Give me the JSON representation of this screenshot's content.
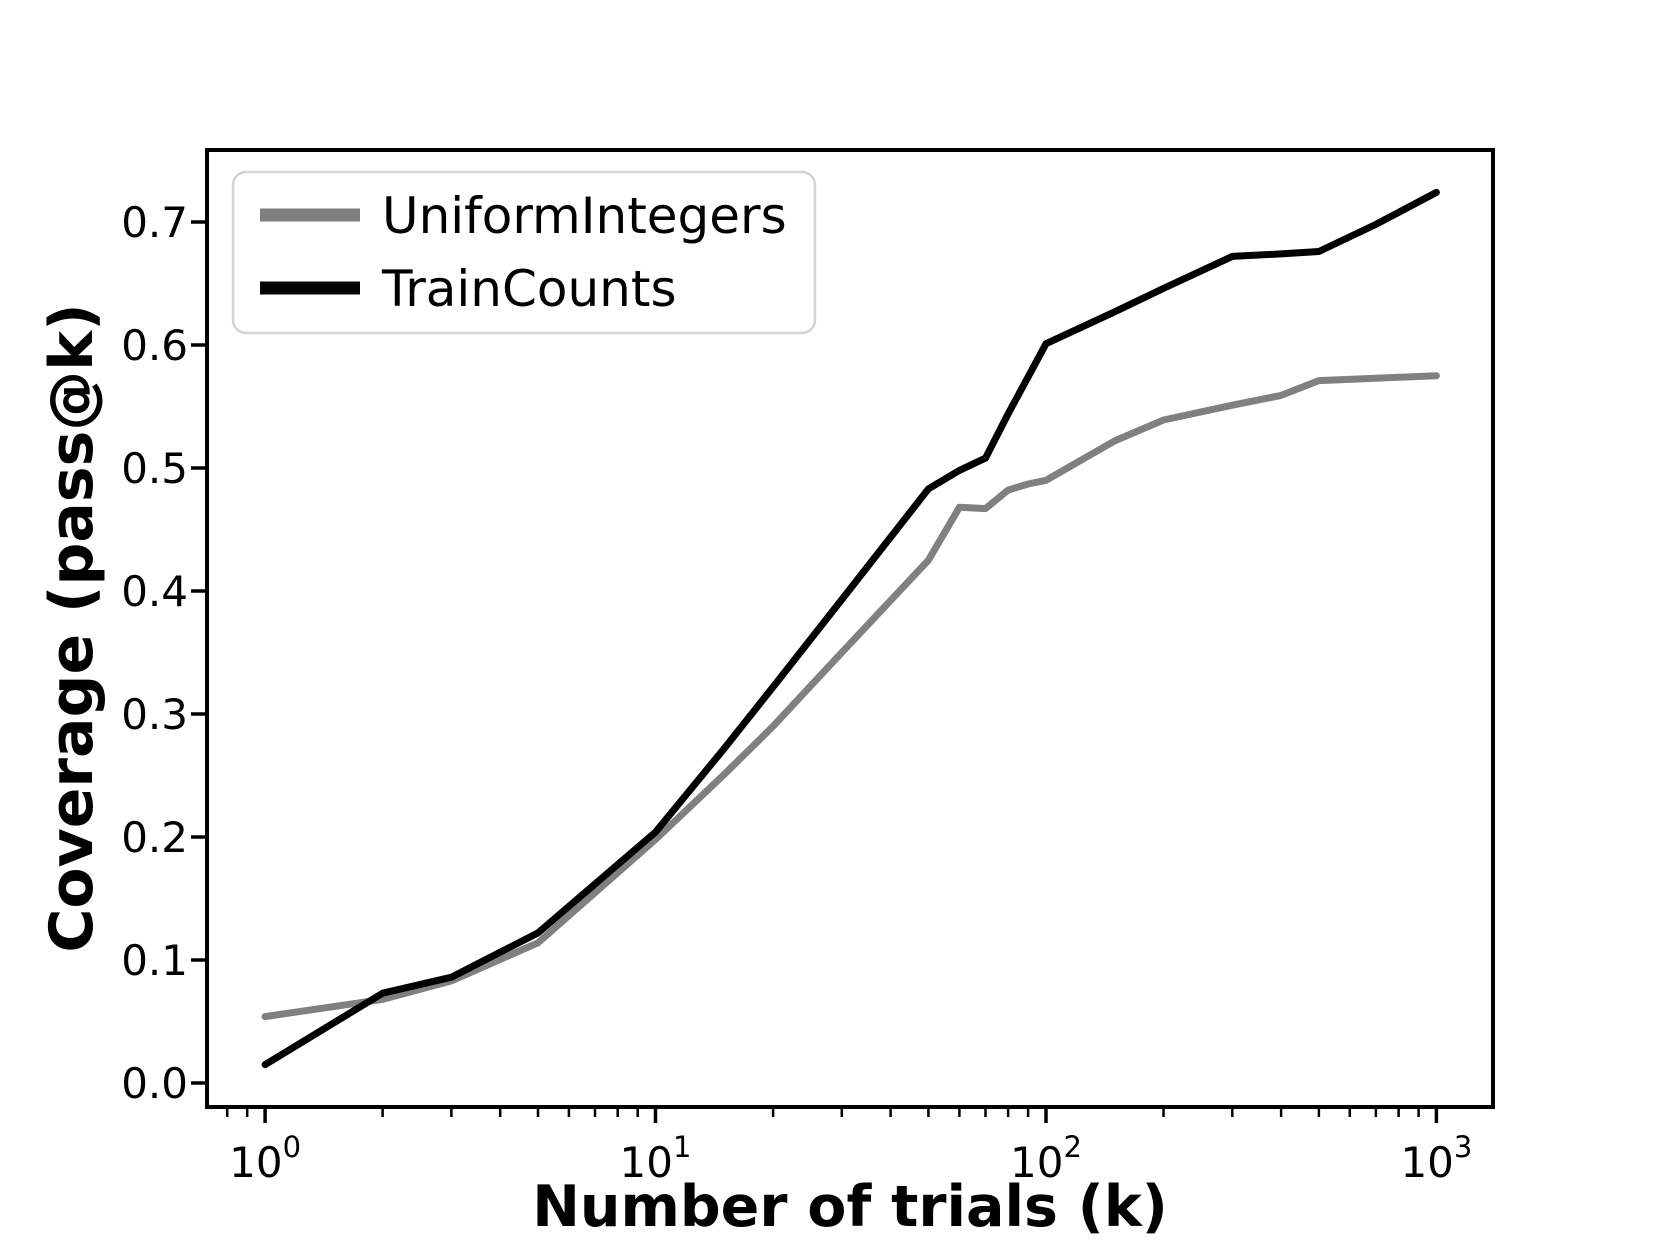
{
  "chart_data": {
    "type": "line",
    "title": "",
    "xlabel": "Number of trials (k)",
    "ylabel": "Coverage (pass@k)",
    "xscale": "log",
    "yscale": "linear",
    "xlim": [
      0.71,
      1396
    ],
    "ylim": [
      -0.0195,
      0.7585
    ],
    "grid": false,
    "x": [
      1,
      2,
      3,
      5,
      10,
      15,
      20,
      30,
      50,
      60,
      70,
      80,
      90,
      100,
      150,
      200,
      300,
      400,
      500,
      700,
      1000
    ],
    "series": [
      {
        "name": "UniformIntegers",
        "color": "#808080",
        "line_width": 7,
        "values": [
          0.054,
          0.068,
          0.083,
          0.114,
          0.198,
          0.251,
          0.29,
          0.35,
          0.425,
          0.468,
          0.467,
          0.482,
          0.487,
          0.49,
          0.522,
          0.539,
          0.551,
          0.559,
          0.571,
          0.573,
          0.575
        ]
      },
      {
        "name": "TrainCounts",
        "color": "#000000",
        "line_width": 7,
        "values": [
          0.015,
          0.073,
          0.086,
          0.122,
          0.204,
          0.272,
          0.322,
          0.393,
          0.483,
          0.498,
          0.508,
          0.544,
          0.574,
          0.601,
          0.627,
          0.646,
          0.672,
          0.674,
          0.676,
          0.698,
          0.724
        ]
      }
    ],
    "xticks": [
      {
        "value": 1,
        "base": "10",
        "exp": "0"
      },
      {
        "value": 10,
        "base": "10",
        "exp": "1"
      },
      {
        "value": 100,
        "base": "10",
        "exp": "2"
      },
      {
        "value": 1000,
        "base": "10",
        "exp": "3"
      }
    ],
    "yticks": [
      {
        "value": 0.0,
        "label": "0.0"
      },
      {
        "value": 0.1,
        "label": "0.1"
      },
      {
        "value": 0.2,
        "label": "0.2"
      },
      {
        "value": 0.3,
        "label": "0.3"
      },
      {
        "value": 0.4,
        "label": "0.4"
      },
      {
        "value": 0.5,
        "label": "0.5"
      },
      {
        "value": 0.6,
        "label": "0.6"
      },
      {
        "value": 0.7,
        "label": "0.7"
      }
    ],
    "legend": {
      "location": "upper left",
      "border_color": "#d5d5d5",
      "background": "#ffffff"
    },
    "colors": {
      "axis": "#000000",
      "background": "#ffffff"
    }
  }
}
